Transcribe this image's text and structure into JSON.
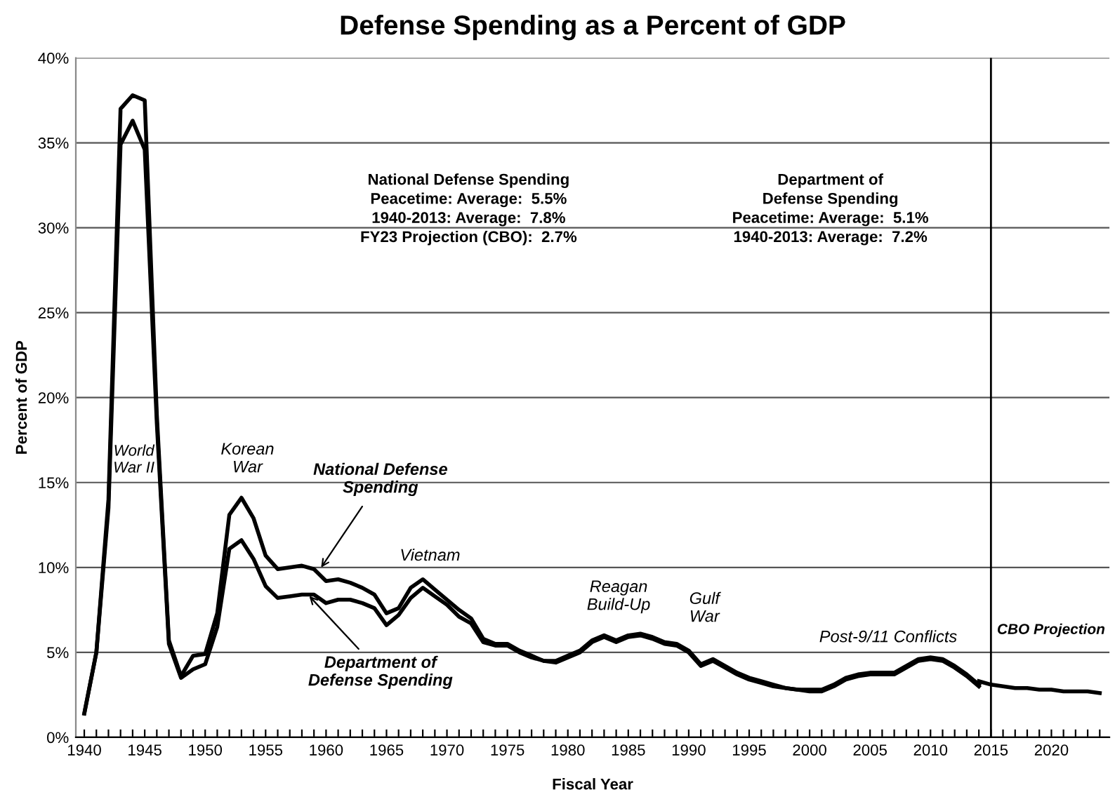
{
  "chart_data": {
    "type": "line",
    "title": "Defense Spending as a Percent of GDP",
    "xlabel": "Fiscal Year",
    "ylabel": "Percent of GDP",
    "x": [
      1940,
      1941,
      1942,
      1943,
      1944,
      1945,
      1946,
      1947,
      1948,
      1949,
      1950,
      1951,
      1952,
      1953,
      1954,
      1955,
      1956,
      1957,
      1958,
      1959,
      1960,
      1961,
      1962,
      1963,
      1964,
      1965,
      1966,
      1967,
      1968,
      1969,
      1970,
      1971,
      1972,
      1973,
      1974,
      1975,
      1976,
      1977,
      1978,
      1979,
      1980,
      1981,
      1982,
      1983,
      1984,
      1985,
      1986,
      1987,
      1988,
      1989,
      1990,
      1991,
      1992,
      1993,
      1994,
      1995,
      1996,
      1997,
      1998,
      1999,
      2000,
      2001,
      2002,
      2003,
      2004,
      2005,
      2006,
      2007,
      2008,
      2009,
      2010,
      2011,
      2012,
      2013,
      2014
    ],
    "series": [
      {
        "color": "#000000",
        "values": [
          1.4,
          5.0,
          14.0,
          37.0,
          37.8,
          37.5,
          19.0,
          5.7,
          3.6,
          4.8,
          4.9,
          7.3,
          13.1,
          14.1,
          12.9,
          10.7,
          9.9,
          10.0,
          10.1,
          9.9,
          9.2,
          9.3,
          9.1,
          8.8,
          8.4,
          7.3,
          7.6,
          8.8,
          9.3,
          8.7,
          8.1,
          7.5,
          7.0,
          5.8,
          5.5,
          5.5,
          5.1,
          4.8,
          4.5,
          4.5,
          4.8,
          5.1,
          5.7,
          6.0,
          5.7,
          6.0,
          6.1,
          5.9,
          5.6,
          5.5,
          5.1,
          4.3,
          4.6,
          4.2,
          3.8,
          3.5,
          3.3,
          3.1,
          2.9,
          2.8,
          2.8,
          2.8,
          3.1,
          3.5,
          3.7,
          3.8,
          3.8,
          3.8,
          4.2,
          4.6,
          4.7,
          4.6,
          4.2,
          3.7,
          3.1
        ]
      },
      {
        "color": "#000000",
        "values": [
          1.4,
          5.0,
          13.5,
          34.9,
          36.3,
          34.6,
          18.5,
          5.5,
          3.5,
          4.0,
          4.3,
          6.5,
          11.1,
          11.6,
          10.5,
          8.9,
          8.2,
          8.3,
          8.4,
          8.4,
          7.9,
          8.1,
          8.1,
          7.9,
          7.6,
          6.6,
          7.2,
          8.2,
          8.8,
          8.3,
          7.8,
          7.1,
          6.7,
          5.6,
          5.4,
          5.4,
          5.0,
          4.7,
          4.5,
          4.4,
          4.7,
          5.0,
          5.6,
          5.9,
          5.6,
          5.9,
          6.0,
          5.8,
          5.5,
          5.4,
          5.0,
          4.2,
          4.5,
          4.1,
          3.7,
          3.4,
          3.2,
          3.0,
          2.9,
          2.8,
          2.7,
          2.7,
          3.0,
          3.4,
          3.6,
          3.7,
          3.7,
          3.7,
          4.1,
          4.5,
          4.6,
          4.5,
          4.1,
          3.6,
          3.0
        ]
      },
      {
        "color": "#000000",
        "x": [
          2014,
          2015,
          2016,
          2017,
          2018,
          2019,
          2020,
          2021,
          2022,
          2023,
          2024
        ],
        "values": [
          3.3,
          3.1,
          3.0,
          2.9,
          2.9,
          2.8,
          2.8,
          2.7,
          2.7,
          2.7,
          2.6
        ]
      }
    ],
    "xlim": [
      1939.3,
      2024.8
    ],
    "ylim": [
      0,
      40
    ],
    "xticks": [
      1940,
      {
        "value": 1941,
        "label": null
      },
      {
        "value": 1942,
        "label": null
      },
      {
        "value": 1943,
        "label": null
      },
      {
        "value": 1944,
        "label": null
      },
      1945,
      {
        "value": 1946,
        "label": null
      },
      {
        "value": 1947,
        "label": null
      },
      {
        "value": 1948,
        "label": null
      },
      {
        "value": 1949,
        "label": null
      },
      1950,
      {
        "value": 1951,
        "label": null
      },
      {
        "value": 1952,
        "label": null
      },
      {
        "value": 1953,
        "label": null
      },
      {
        "value": 1954,
        "label": null
      },
      1955,
      {
        "value": 1956,
        "label": null
      },
      {
        "value": 1957,
        "label": null
      },
      {
        "value": 1958,
        "label": null
      },
      {
        "value": 1959,
        "label": null
      },
      1960,
      {
        "value": 1961,
        "label": null
      },
      {
        "value": 1962,
        "label": null
      },
      {
        "value": 1963,
        "label": null
      },
      {
        "value": 1964,
        "label": null
      },
      1965,
      {
        "value": 1966,
        "label": null
      },
      {
        "value": 1967,
        "label": null
      },
      {
        "value": 1968,
        "label": null
      },
      {
        "value": 1969,
        "label": null
      },
      1970,
      {
        "value": 1971,
        "label": null
      },
      {
        "value": 1972,
        "label": null
      },
      {
        "value": 1973,
        "label": null
      },
      {
        "value": 1974,
        "label": null
      },
      1975,
      {
        "value": 1976,
        "label": null
      },
      {
        "value": 1977,
        "label": null
      },
      {
        "value": 1978,
        "label": null
      },
      {
        "value": 1979,
        "label": null
      },
      1980,
      {
        "value": 1981,
        "label": null
      },
      {
        "value": 1982,
        "label": null
      },
      {
        "value": 1983,
        "label": null
      },
      {
        "value": 1984,
        "label": null
      },
      1985,
      {
        "value": 1986,
        "label": null
      },
      {
        "value": 1987,
        "label": null
      },
      {
        "value": 1988,
        "label": null
      },
      {
        "value": 1989,
        "label": null
      },
      1990,
      {
        "value": 1991,
        "label": null
      },
      {
        "value": 1992,
        "label": null
      },
      {
        "value": 1993,
        "label": null
      },
      {
        "value": 1994,
        "label": null
      },
      1995,
      {
        "value": 1996,
        "label": null
      },
      {
        "value": 1997,
        "label": null
      },
      {
        "value": 1998,
        "label": null
      },
      {
        "value": 1999,
        "label": null
      },
      2000,
      {
        "value": 2001,
        "label": null
      },
      {
        "value": 2002,
        "label": null
      },
      {
        "value": 2003,
        "label": null
      },
      {
        "value": 2004,
        "label": null
      },
      2005,
      {
        "value": 2006,
        "label": null
      },
      {
        "value": 2007,
        "label": null
      },
      {
        "value": 2008,
        "label": null
      },
      {
        "value": 2009,
        "label": null
      },
      2010,
      {
        "value": 2011,
        "label": null
      },
      {
        "value": 2012,
        "label": null
      },
      {
        "value": 2013,
        "label": null
      },
      {
        "value": 2014,
        "label": null
      },
      2015,
      {
        "value": 2016,
        "label": null
      },
      {
        "value": 2017,
        "label": null
      },
      {
        "value": 2018,
        "label": null
      },
      {
        "value": 2019,
        "label": null
      },
      2020,
      {
        "value": 2021,
        "label": null
      },
      {
        "value": 2022,
        "label": null
      },
      {
        "value": 2023,
        "label": null
      },
      {
        "value": 2024,
        "label": null
      }
    ],
    "yticks": [
      {
        "value": 0,
        "label": "0%"
      },
      {
        "value": 5,
        "label": "5%"
      },
      {
        "value": 10,
        "label": "10%"
      },
      {
        "value": 15,
        "label": "15%"
      },
      {
        "value": 20,
        "label": "20%"
      },
      {
        "value": 25,
        "label": "25%"
      },
      {
        "value": 30,
        "label": "30%"
      },
      {
        "value": 35,
        "label": "35%"
      },
      {
        "value": 40,
        "label": "40%"
      }
    ],
    "grid": "y",
    "marker": "none",
    "line_style": "solid",
    "ref_lines": [
      {
        "axis": "x",
        "value": 2015,
        "label": "CBO Projection",
        "color": "#000000"
      }
    ],
    "annotations": [
      "National Defense Spending\nPeacetime: Average:  5.5%\n1940-2013: Average:  7.8%\nFY23 Projection (CBO):  2.7%",
      "Department of\nDefense Spending\nPeacetime: Average:  5.1%\n1940-2013: Average:  7.2%",
      "World\nWar II",
      "Korean\nWar",
      {
        "text": "National Defense\nSpending",
        "x": 1959.5,
        "y": 9.9
      },
      {
        "text": "Department of\nDefense Spending",
        "x": 1958.5,
        "y": 8.4
      },
      "Vietnam",
      "Reagan\nBuild-Up",
      "Gulf\nWar",
      "Post-9/11 Conflicts"
    ]
  }
}
